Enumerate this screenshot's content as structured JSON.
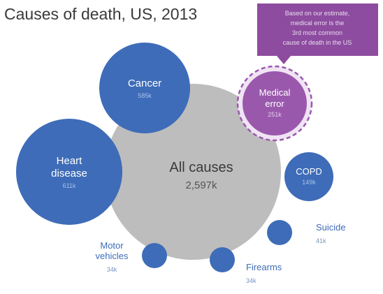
{
  "chart_data": {
    "type": "bubble",
    "title": "Causes of death, US, 2013",
    "unit": "k",
    "total": {
      "label": "All causes",
      "value": "2,597k",
      "numeric": 2597
    },
    "bubbles": [
      {
        "key": "cancer",
        "label": [
          "Cancer"
        ],
        "value": "585k",
        "numeric": 585,
        "highlight": false
      },
      {
        "key": "medical-error",
        "label": [
          "Medical",
          "error"
        ],
        "value": "251k",
        "numeric": 251,
        "highlight": true
      },
      {
        "key": "heart-disease",
        "label": [
          "Heart",
          "disease"
        ],
        "value": "611k",
        "numeric": 611,
        "highlight": false
      },
      {
        "key": "copd",
        "label": [
          "COPD"
        ],
        "value": "149k",
        "numeric": 149,
        "highlight": false
      },
      {
        "key": "suicide",
        "label": [
          "Suicide"
        ],
        "value": "41k",
        "numeric": 41,
        "highlight": false
      },
      {
        "key": "firearms",
        "label": [
          "Firearms"
        ],
        "value": "34k",
        "numeric": 34,
        "highlight": false
      },
      {
        "key": "motor-vehicles",
        "label": [
          "Motor",
          "vehicles"
        ],
        "value": "34k",
        "numeric": 34,
        "highlight": false
      }
    ],
    "callout": {
      "lines": [
        "Based on our estimate,",
        "medical error is the",
        "3rd most common",
        "cause of death in the US"
      ]
    },
    "colors": {
      "bubble": "#3e6cb8",
      "highlight": "#9a58ad",
      "highlight_ring": "#f0e4f4",
      "total": "#bdbdbd",
      "callout_bg": "#8d4c9f",
      "title": "#3a3a3a",
      "bubble_value": "#a9c3ea",
      "highlight_value": "#e3cdea",
      "outside_label": "#3e6cb8"
    }
  }
}
